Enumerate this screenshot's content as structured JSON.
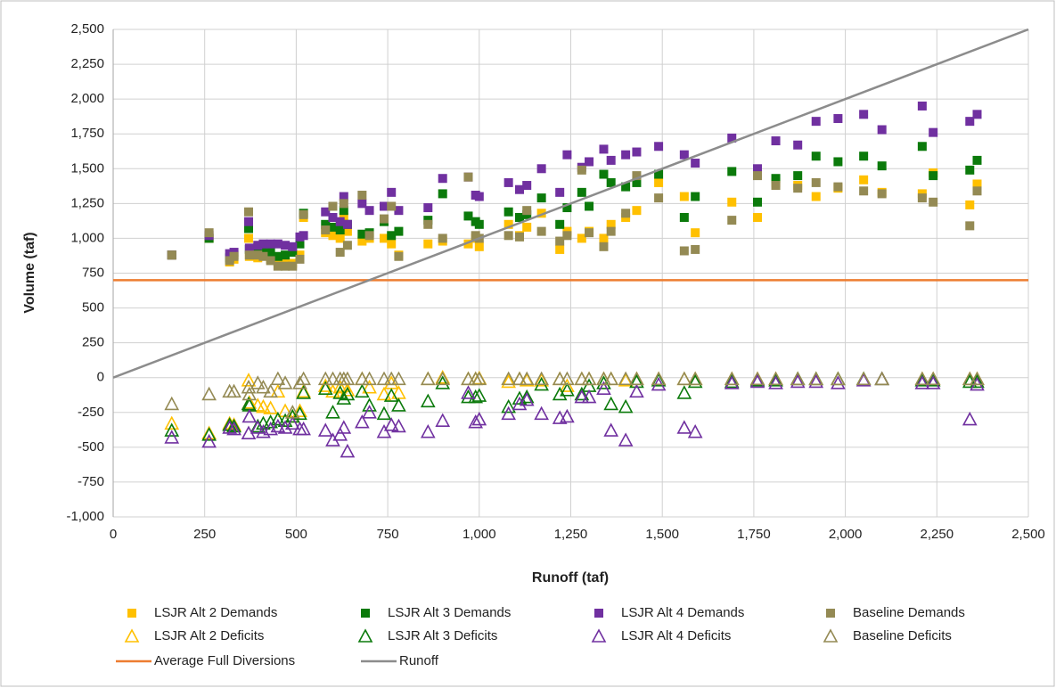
{
  "chart_data": {
    "type": "scatter",
    "xlabel": "Runoff (taf)",
    "ylabel": "Volume (taf)",
    "xlim": [
      0,
      2500
    ],
    "ylim": [
      -1000,
      2500
    ],
    "xticks": [
      0,
      250,
      500,
      750,
      {
        "value": 1000,
        "label": "1,000"
      },
      {
        "value": 1250,
        "label": "1,250"
      },
      {
        "value": 1500,
        "label": "1,500"
      },
      {
        "value": 1750,
        "label": "1,750"
      },
      {
        "value": 2000,
        "label": "2,000"
      },
      {
        "value": 2250,
        "label": "2,250"
      },
      {
        "value": 2500,
        "label": "2,500"
      }
    ],
    "yticks": [
      {
        "value": -1000,
        "label": "-1,000"
      },
      -750,
      -500,
      -250,
      0,
      250,
      500,
      750,
      {
        "value": 1000,
        "label": "1,000"
      },
      {
        "value": 1250,
        "label": "1,250"
      },
      {
        "value": 1500,
        "label": "1,500"
      },
      {
        "value": 1750,
        "label": "1,750"
      },
      {
        "value": 2000,
        "label": "2,000"
      },
      {
        "value": 2250,
        "label": "2,250"
      },
      {
        "value": 2500,
        "label": "2,500"
      }
    ],
    "grid": true,
    "x": [
      160,
      262,
      318,
      330,
      370,
      372,
      395,
      410,
      430,
      450,
      470,
      490,
      510,
      520,
      580,
      600,
      620,
      630,
      640,
      680,
      700,
      740,
      760,
      780,
      860,
      900,
      970,
      990,
      1000,
      1080,
      1110,
      1130,
      1170,
      1220,
      1240,
      1280,
      1300,
      1340,
      1360,
      1400,
      1430,
      1490,
      1560,
      1590,
      1690,
      1760,
      1810,
      1870,
      1920,
      1980,
      2050,
      2100,
      2210,
      2240,
      2340,
      2360
    ],
    "series": [
      {
        "name": "LSJR Alt 2 Demands",
        "color": "#FFC000",
        "marker": "square",
        "values": [
          880,
          1000,
          830,
          850,
          1000,
          870,
          860,
          880,
          850,
          830,
          830,
          820,
          880,
          1150,
          1040,
          1020,
          1000,
          1150,
          1050,
          980,
          1000,
          1000,
          960,
          880,
          960,
          980,
          960,
          1000,
          940,
          1100,
          1020,
          1080,
          1180,
          920,
          1050,
          1000,
          1050,
          1000,
          1100,
          1150,
          1200,
          1400,
          1300,
          1040,
          1260,
          1150,
          1400,
          1380,
          1300,
          1360,
          1420,
          1330,
          1320,
          1470,
          1240,
          1390
        ]
      },
      {
        "name": "LSJR Alt 3 Demands",
        "color": "#0B7A0B",
        "marker": "square",
        "values": [
          880,
          1000,
          860,
          880,
          1070,
          920,
          930,
          900,
          900,
          870,
          880,
          900,
          960,
          1180,
          1100,
          1080,
          1060,
          1200,
          1100,
          1030,
          1040,
          1120,
          1020,
          1050,
          1130,
          1320,
          1160,
          1120,
          1100,
          1190,
          1150,
          1170,
          1290,
          1100,
          1220,
          1330,
          1230,
          1460,
          1400,
          1370,
          1400,
          1460,
          1150,
          1300,
          1480,
          1260,
          1430,
          1450,
          1590,
          1550,
          1590,
          1520,
          1660,
          1450,
          1490,
          1560
        ]
      },
      {
        "name": "LSJR Alt 4 Demands",
        "color": "#7030A0",
        "marker": "square",
        "values": [
          880,
          1020,
          890,
          900,
          1120,
          930,
          950,
          960,
          960,
          960,
          950,
          940,
          1010,
          1020,
          1190,
          1150,
          1120,
          1300,
          1100,
          1250,
          1200,
          1230,
          1330,
          1200,
          1220,
          1430,
          1440,
          1310,
          1300,
          1400,
          1350,
          1380,
          1500,
          1330,
          1600,
          1510,
          1550,
          1640,
          1560,
          1600,
          1620,
          1660,
          1600,
          1540,
          1720,
          1500,
          1700,
          1670,
          1840,
          1860,
          1890,
          1780,
          1950,
          1760,
          1840,
          1890
        ]
      },
      {
        "name": "Baseline Demands",
        "color": "#948A54",
        "marker": "square",
        "values": [
          880,
          1040,
          840,
          870,
          1190,
          880,
          880,
          870,
          840,
          800,
          800,
          800,
          850,
          1170,
          1060,
          1230,
          900,
          1250,
          950,
          1310,
          1020,
          1140,
          1230,
          870,
          1100,
          1000,
          1440,
          1020,
          1000,
          1020,
          1010,
          1200,
          1050,
          980,
          1020,
          1490,
          1040,
          940,
          1050,
          1180,
          1450,
          1290,
          910,
          920,
          1130,
          1450,
          1380,
          1360,
          1400,
          1370,
          1340,
          1320,
          1290,
          1260,
          1090,
          1340
        ]
      },
      {
        "name": "LSJR Alt 2 Deficits",
        "color": "#FFC000",
        "marker": "triangle",
        "values": [
          -330,
          -400,
          -330,
          -340,
          -20,
          -180,
          -200,
          -210,
          -220,
          -100,
          -240,
          -280,
          -240,
          -100,
          -60,
          -100,
          -70,
          -60,
          -90,
          -10,
          -70,
          -120,
          -40,
          -110,
          -10,
          0,
          -10,
          -10,
          -5,
          -30,
          -10,
          -20,
          -20,
          -10,
          -60,
          -10,
          -10,
          -10,
          -10,
          -20,
          -10,
          -10,
          -10,
          -10,
          -10,
          -10,
          -10,
          -10,
          -10,
          -10,
          -10,
          -10,
          -10,
          -10,
          -10,
          -10
        ]
      },
      {
        "name": "LSJR Alt 3 Deficits",
        "color": "#0B7A0B",
        "marker": "triangle",
        "values": [
          -380,
          -410,
          -340,
          -350,
          -190,
          -200,
          -350,
          -330,
          -320,
          -300,
          -310,
          -280,
          -260,
          -110,
          -80,
          -250,
          -110,
          -150,
          -120,
          -100,
          -200,
          -260,
          -130,
          -200,
          -170,
          -40,
          -140,
          -140,
          -130,
          -210,
          -150,
          -140,
          -50,
          -120,
          -90,
          -120,
          -60,
          -40,
          -190,
          -210,
          -30,
          -20,
          -110,
          -30,
          -30,
          -20,
          -20,
          -10,
          -10,
          -10,
          -10,
          -10,
          -20,
          -20,
          -30,
          -30
        ]
      },
      {
        "name": "LSJR Alt 4 Deficits",
        "color": "#7030A0",
        "marker": "triangle",
        "values": [
          -430,
          -460,
          -360,
          -370,
          -400,
          -280,
          -360,
          -390,
          -370,
          -350,
          -360,
          -330,
          -370,
          -370,
          -380,
          -450,
          -410,
          -360,
          -530,
          -320,
          -250,
          -390,
          -340,
          -350,
          -390,
          -310,
          -110,
          -320,
          -300,
          -260,
          -190,
          -160,
          -260,
          -290,
          -280,
          -140,
          -140,
          -80,
          -380,
          -450,
          -100,
          -50,
          -360,
          -390,
          -40,
          -30,
          -40,
          -30,
          -30,
          -40,
          -20,
          -10,
          -40,
          -40,
          -300,
          -50
        ]
      },
      {
        "name": "Baseline Deficits",
        "color": "#948A54",
        "marker": "triangle",
        "values": [
          -190,
          -120,
          -100,
          -100,
          -70,
          -120,
          -40,
          -70,
          -100,
          -10,
          -40,
          -250,
          -40,
          -10,
          -10,
          -10,
          -10,
          -10,
          -10,
          -10,
          -10,
          -10,
          -10,
          -10,
          -10,
          -10,
          -10,
          -10,
          -10,
          -10,
          -10,
          -10,
          -10,
          -10,
          -10,
          -10,
          -10,
          -10,
          -10,
          -10,
          -10,
          -10,
          -10,
          -10,
          -10,
          -10,
          -10,
          -10,
          -10,
          -10,
          -10,
          -10,
          -10,
          -10,
          -10,
          -10
        ]
      },
      {
        "name": "Average Full Diversions",
        "color": "#ED7D31",
        "marker": "line",
        "x": [
          0,
          2500
        ],
        "values": [
          700,
          700
        ]
      },
      {
        "name": "Runoff",
        "color": "#8C8C8C",
        "marker": "line",
        "x": [
          0,
          2500
        ],
        "values": [
          0,
          2500
        ]
      }
    ]
  }
}
